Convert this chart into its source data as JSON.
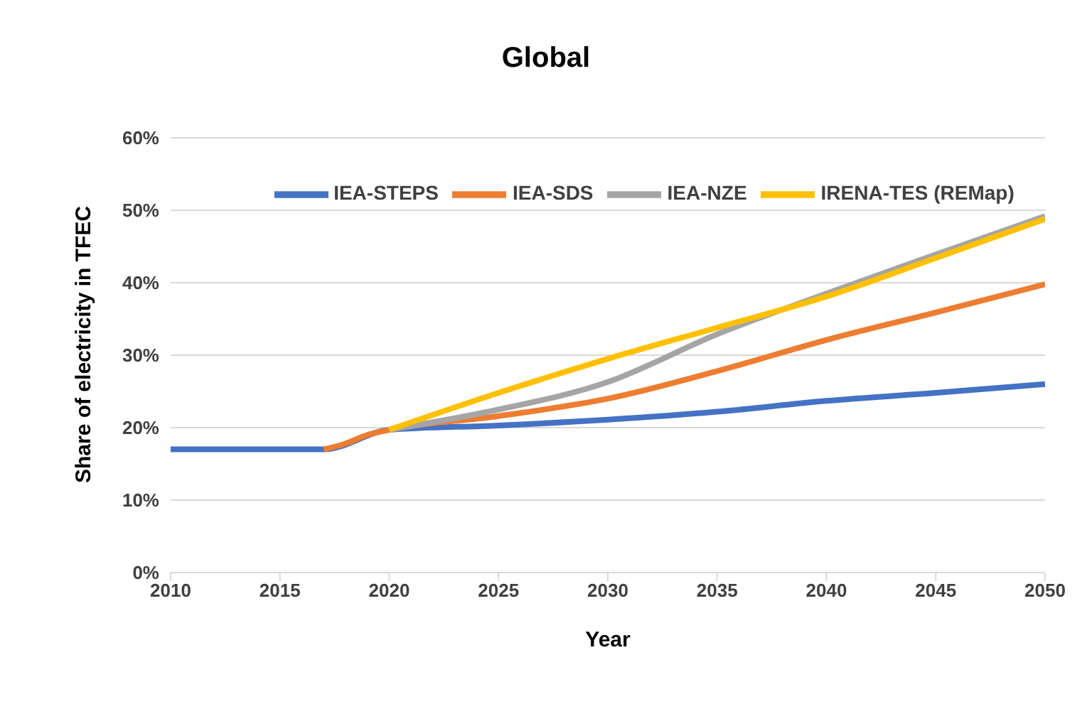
{
  "chart_data": {
    "type": "line",
    "title": "Global",
    "xlabel": "Year",
    "ylabel": "Share of electricity in TFEC",
    "xlim": [
      2010,
      2050
    ],
    "xticks": [
      2010,
      2015,
      2020,
      2025,
      2030,
      2035,
      2040,
      2045,
      2050
    ],
    "ylim": [
      0,
      60
    ],
    "yticks": [
      {
        "value": 0,
        "label": "0%"
      },
      {
        "value": 10,
        "label": "10%"
      },
      {
        "value": 20,
        "label": "20%"
      },
      {
        "value": 30,
        "label": "30%"
      },
      {
        "value": 40,
        "label": "40%"
      },
      {
        "value": 50,
        "label": "50%"
      },
      {
        "value": 60,
        "label": "60%"
      }
    ],
    "grid": "y",
    "legend": "top",
    "marker": "none",
    "line_style": "solid",
    "series": [
      {
        "name": "IEA-STEPS",
        "color": "#4472c4",
        "x": [
          2010,
          2017,
          2020,
          2025,
          2030,
          2035,
          2040,
          2045,
          2050
        ],
        "values": [
          17,
          17,
          19.7,
          20.3,
          21.1,
          22.2,
          23.7,
          24.8,
          26
        ]
      },
      {
        "name": "IEA-SDS",
        "color": "#ed7d31",
        "x": [
          2017,
          2018,
          2019,
          2020,
          2025,
          2030,
          2035,
          2040,
          2045,
          2050
        ],
        "values": [
          17,
          17.8,
          19,
          19.7,
          21.6,
          24,
          27.8,
          32.1,
          35.9,
          39.8
        ]
      },
      {
        "name": "IEA-NZE",
        "color": "#a5a5a5",
        "x": [
          2020,
          2025,
          2030,
          2035,
          2040,
          2045,
          2050
        ],
        "values": [
          19.7,
          22.5,
          26.3,
          32.9,
          38.5,
          43.9,
          49.2
        ]
      },
      {
        "name": "IRENA-TES (REMap)",
        "color": "#ffc000",
        "x": [
          2020,
          2025,
          2030,
          2035,
          2040,
          2045,
          2050
        ],
        "values": [
          19.7,
          24.8,
          29.5,
          33.8,
          38.1,
          43.4,
          48.8
        ]
      }
    ]
  }
}
